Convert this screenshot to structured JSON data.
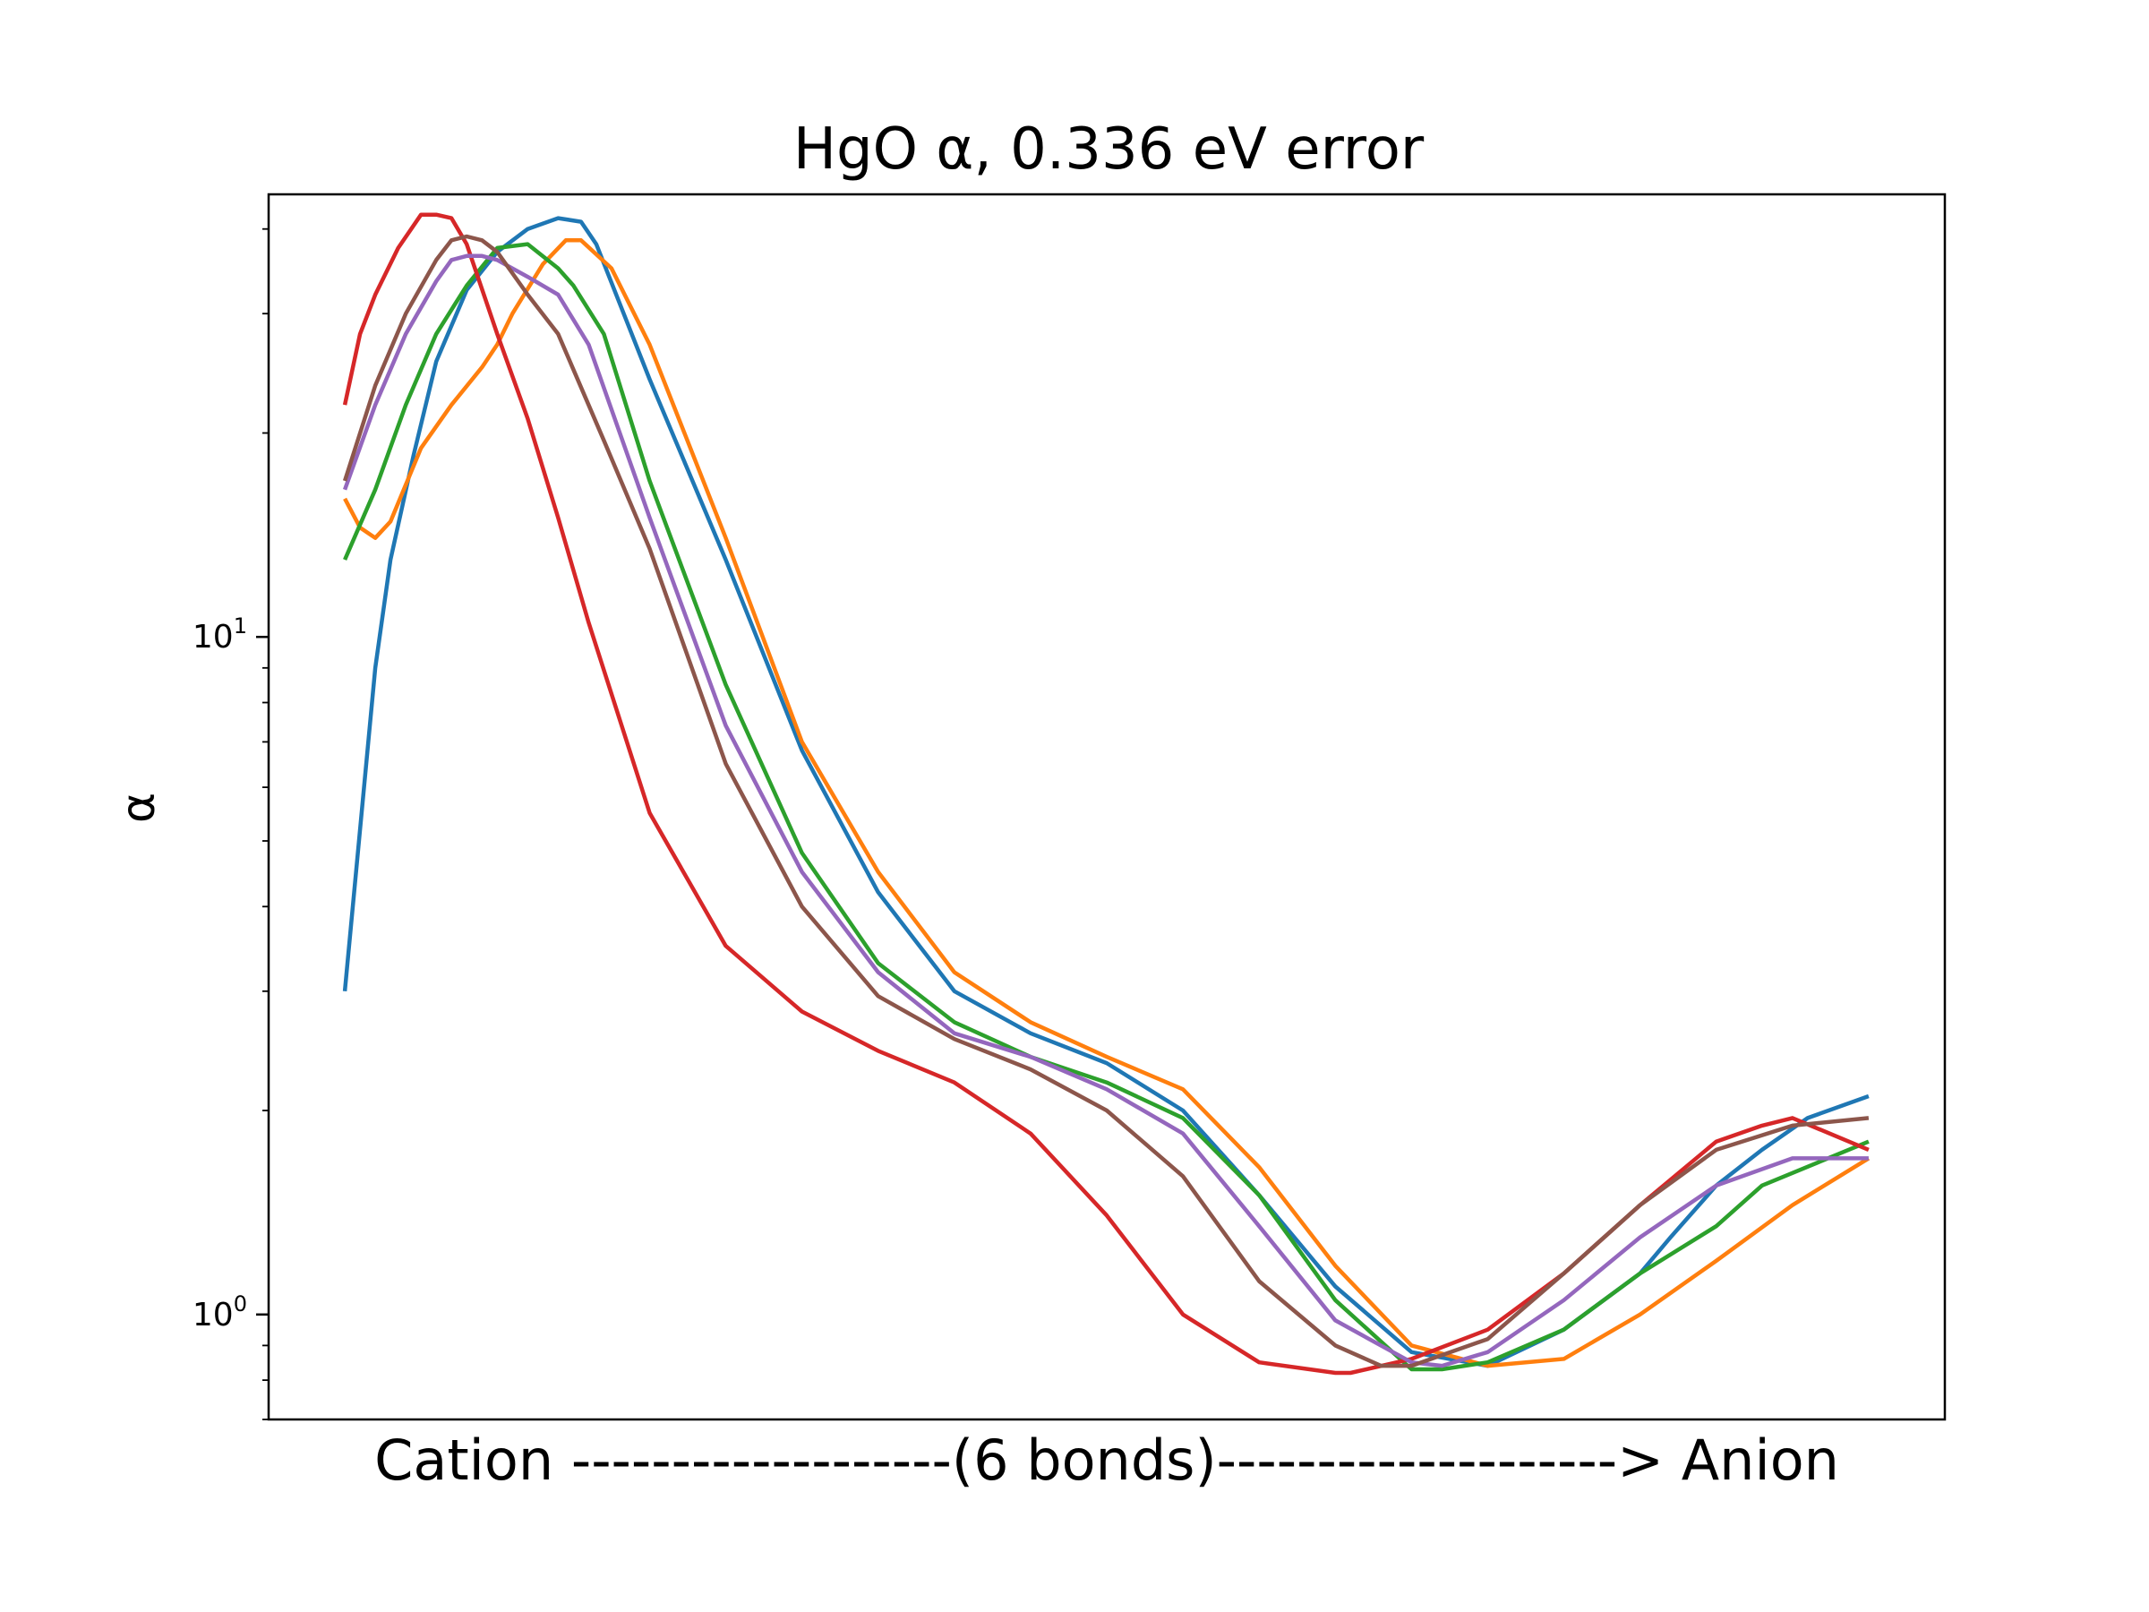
{
  "chart_data": {
    "type": "line",
    "title": "HgO α, 0.336 eV error",
    "xlabel": "Cation -------------------(6 bonds)--------------------> Anion",
    "ylabel": "α",
    "yscale": "log",
    "ylim": [
      0.7,
      45
    ],
    "xlim": [
      -0.05,
      1.05
    ],
    "grid": false,
    "legend": "none",
    "yticks": [
      {
        "value": 1,
        "base": "10",
        "exp": "0"
      },
      {
        "value": 10,
        "base": "10",
        "exp": "1"
      }
    ],
    "series": [
      {
        "name": "series-1",
        "color": "#1f77b4",
        "x": [
          0,
          0.02,
          0.03,
          0.045,
          0.06,
          0.08,
          0.1,
          0.12,
          0.14,
          0.155,
          0.165,
          0.2,
          0.25,
          0.3,
          0.35,
          0.4,
          0.45,
          0.5,
          0.55,
          0.6,
          0.65,
          0.7,
          0.75,
          0.8,
          0.85,
          0.87,
          0.9,
          0.93,
          0.96,
          1.0
        ],
        "values": [
          3.0,
          9.0,
          13.0,
          18.5,
          25.5,
          32.5,
          37.0,
          40.0,
          41.5,
          41.0,
          38.0,
          24.0,
          13.0,
          6.8,
          4.2,
          3.0,
          2.6,
          2.35,
          2.0,
          1.5,
          1.1,
          0.88,
          0.84,
          0.95,
          1.15,
          1.3,
          1.55,
          1.75,
          1.95,
          2.1
        ]
      },
      {
        "name": "series-2",
        "color": "#ff7f0e",
        "x": [
          0,
          0.01,
          0.02,
          0.03,
          0.05,
          0.07,
          0.09,
          0.1,
          0.11,
          0.13,
          0.145,
          0.155,
          0.175,
          0.2,
          0.25,
          0.3,
          0.35,
          0.4,
          0.45,
          0.5,
          0.55,
          0.6,
          0.65,
          0.7,
          0.75,
          0.8,
          0.85,
          0.9,
          0.95,
          1.0
        ],
        "values": [
          16.0,
          14.5,
          14.0,
          14.8,
          19.0,
          22.0,
          25.0,
          27.0,
          30.0,
          35.5,
          38.5,
          38.5,
          35.0,
          27.0,
          14.0,
          7.0,
          4.5,
          3.2,
          2.7,
          2.4,
          2.15,
          1.65,
          1.18,
          0.9,
          0.84,
          0.86,
          1.0,
          1.2,
          1.45,
          1.7
        ]
      },
      {
        "name": "series-3",
        "color": "#2ca02c",
        "x": [
          0,
          0.02,
          0.04,
          0.06,
          0.08,
          0.1,
          0.12,
          0.14,
          0.15,
          0.17,
          0.2,
          0.25,
          0.3,
          0.35,
          0.4,
          0.45,
          0.5,
          0.55,
          0.6,
          0.65,
          0.7,
          0.72,
          0.75,
          0.8,
          0.85,
          0.9,
          0.93,
          1.0
        ],
        "values": [
          13.0,
          16.5,
          22.0,
          28.0,
          33.0,
          37.5,
          38.0,
          35.0,
          33.0,
          28.0,
          17.0,
          8.5,
          4.8,
          3.3,
          2.7,
          2.4,
          2.2,
          1.95,
          1.5,
          1.05,
          0.83,
          0.83,
          0.85,
          0.95,
          1.15,
          1.35,
          1.55,
          1.8
        ]
      },
      {
        "name": "series-4",
        "color": "#d62728",
        "x": [
          0,
          0.01,
          0.02,
          0.035,
          0.05,
          0.06,
          0.07,
          0.08,
          0.1,
          0.12,
          0.14,
          0.16,
          0.2,
          0.25,
          0.3,
          0.35,
          0.4,
          0.45,
          0.5,
          0.55,
          0.6,
          0.65,
          0.66,
          0.7,
          0.75,
          0.8,
          0.85,
          0.9,
          0.93,
          0.95,
          1.0
        ],
        "values": [
          22.0,
          28.0,
          32.0,
          37.5,
          42.0,
          42.0,
          41.5,
          38.0,
          28.0,
          21.0,
          15.0,
          10.5,
          5.5,
          3.5,
          2.8,
          2.45,
          2.2,
          1.85,
          1.4,
          1.0,
          0.85,
          0.82,
          0.82,
          0.86,
          0.95,
          1.15,
          1.45,
          1.8,
          1.9,
          1.95,
          1.75
        ]
      },
      {
        "name": "series-5",
        "color": "#9467bd",
        "x": [
          0,
          0.02,
          0.04,
          0.06,
          0.07,
          0.08,
          0.09,
          0.1,
          0.12,
          0.14,
          0.16,
          0.2,
          0.25,
          0.3,
          0.35,
          0.4,
          0.45,
          0.5,
          0.55,
          0.6,
          0.65,
          0.7,
          0.72,
          0.75,
          0.8,
          0.85,
          0.9,
          0.95,
          1.0
        ],
        "values": [
          16.5,
          22.0,
          28.0,
          33.5,
          36.0,
          36.5,
          36.5,
          36.0,
          34.0,
          32.0,
          27.0,
          15.0,
          7.4,
          4.5,
          3.2,
          2.6,
          2.4,
          2.15,
          1.85,
          1.35,
          0.98,
          0.85,
          0.84,
          0.88,
          1.05,
          1.3,
          1.55,
          1.7,
          1.7
        ]
      },
      {
        "name": "series-6",
        "color": "#8c564b",
        "x": [
          0,
          0.02,
          0.04,
          0.06,
          0.07,
          0.08,
          0.09,
          0.1,
          0.12,
          0.14,
          0.17,
          0.2,
          0.25,
          0.3,
          0.35,
          0.4,
          0.45,
          0.5,
          0.55,
          0.6,
          0.65,
          0.68,
          0.7,
          0.75,
          0.8,
          0.85,
          0.9,
          0.95,
          1.0
        ],
        "values": [
          17.0,
          23.5,
          30.0,
          36.0,
          38.5,
          39.0,
          38.5,
          37.0,
          32.0,
          28.0,
          19.5,
          13.5,
          6.5,
          4.0,
          2.95,
          2.55,
          2.3,
          2.0,
          1.6,
          1.12,
          0.9,
          0.84,
          0.84,
          0.92,
          1.15,
          1.45,
          1.75,
          1.9,
          1.95
        ]
      }
    ]
  }
}
